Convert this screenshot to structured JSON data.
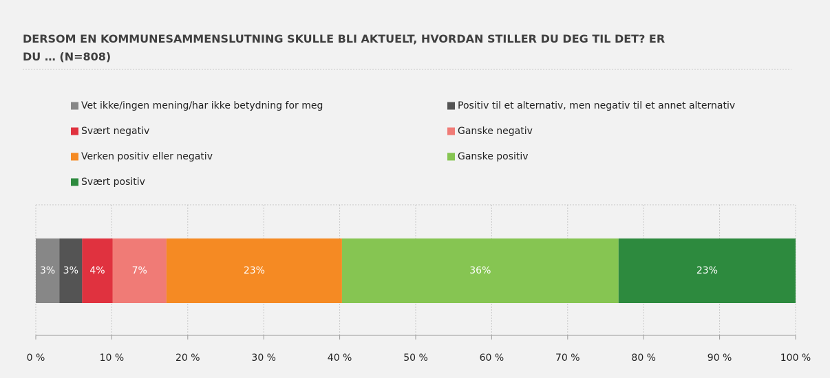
{
  "chart_data": {
    "type": "stacked-bar-horizontal",
    "title": "DERSOM EN KOMMUNESAMMENSLUTNING SKULLE BLI AKTUELT, HVORDAN STILLER DU DEG TIL DET? ER DU … (N=808)",
    "categories": [
      null
    ],
    "series": [
      {
        "name": "Vet ikke/ingen mening/har ikke betydning for meg",
        "color": "#878787",
        "values": [
          3.1
        ],
        "value_labels": [
          "3%"
        ]
      },
      {
        "name": "Positiv til et alternativ, men negativ til et annet alternativ",
        "color": "#545454",
        "values": [
          3.0
        ],
        "value_labels": [
          "3%"
        ]
      },
      {
        "name": "Svært negativ",
        "color": "#e0323f",
        "values": [
          4.0
        ],
        "value_labels": [
          "4%"
        ]
      },
      {
        "name": "Ganske negativ",
        "color": "#f07b76",
        "values": [
          7.1
        ],
        "value_labels": [
          "7%"
        ]
      },
      {
        "name": "Verken positiv eller negativ",
        "color": "#f58a23",
        "values": [
          23.1
        ],
        "value_labels": [
          "23%"
        ]
      },
      {
        "name": "Ganske positiv",
        "color": "#86c552",
        "values": [
          36.4
        ],
        "value_labels": [
          "36%"
        ]
      },
      {
        "name": "Svært positiv",
        "color": "#2d8a3e",
        "values": [
          23.3
        ],
        "value_labels": [
          "23%"
        ]
      }
    ],
    "xlim": [
      0,
      100
    ],
    "xticks": [
      {
        "value": 0,
        "label": "0 %"
      },
      {
        "value": 10,
        "label": "10 %"
      },
      {
        "value": 20,
        "label": "20 %"
      },
      {
        "value": 30,
        "label": "30 %"
      },
      {
        "value": 40,
        "label": "40 %"
      },
      {
        "value": 50,
        "label": "50 %"
      },
      {
        "value": 60,
        "label": "60 %"
      },
      {
        "value": 70,
        "label": "70 %"
      },
      {
        "value": 80,
        "label": "80 %"
      },
      {
        "value": 90,
        "label": "90 %"
      },
      {
        "value": 100,
        "label": "100 %"
      }
    ],
    "grid": true
  }
}
